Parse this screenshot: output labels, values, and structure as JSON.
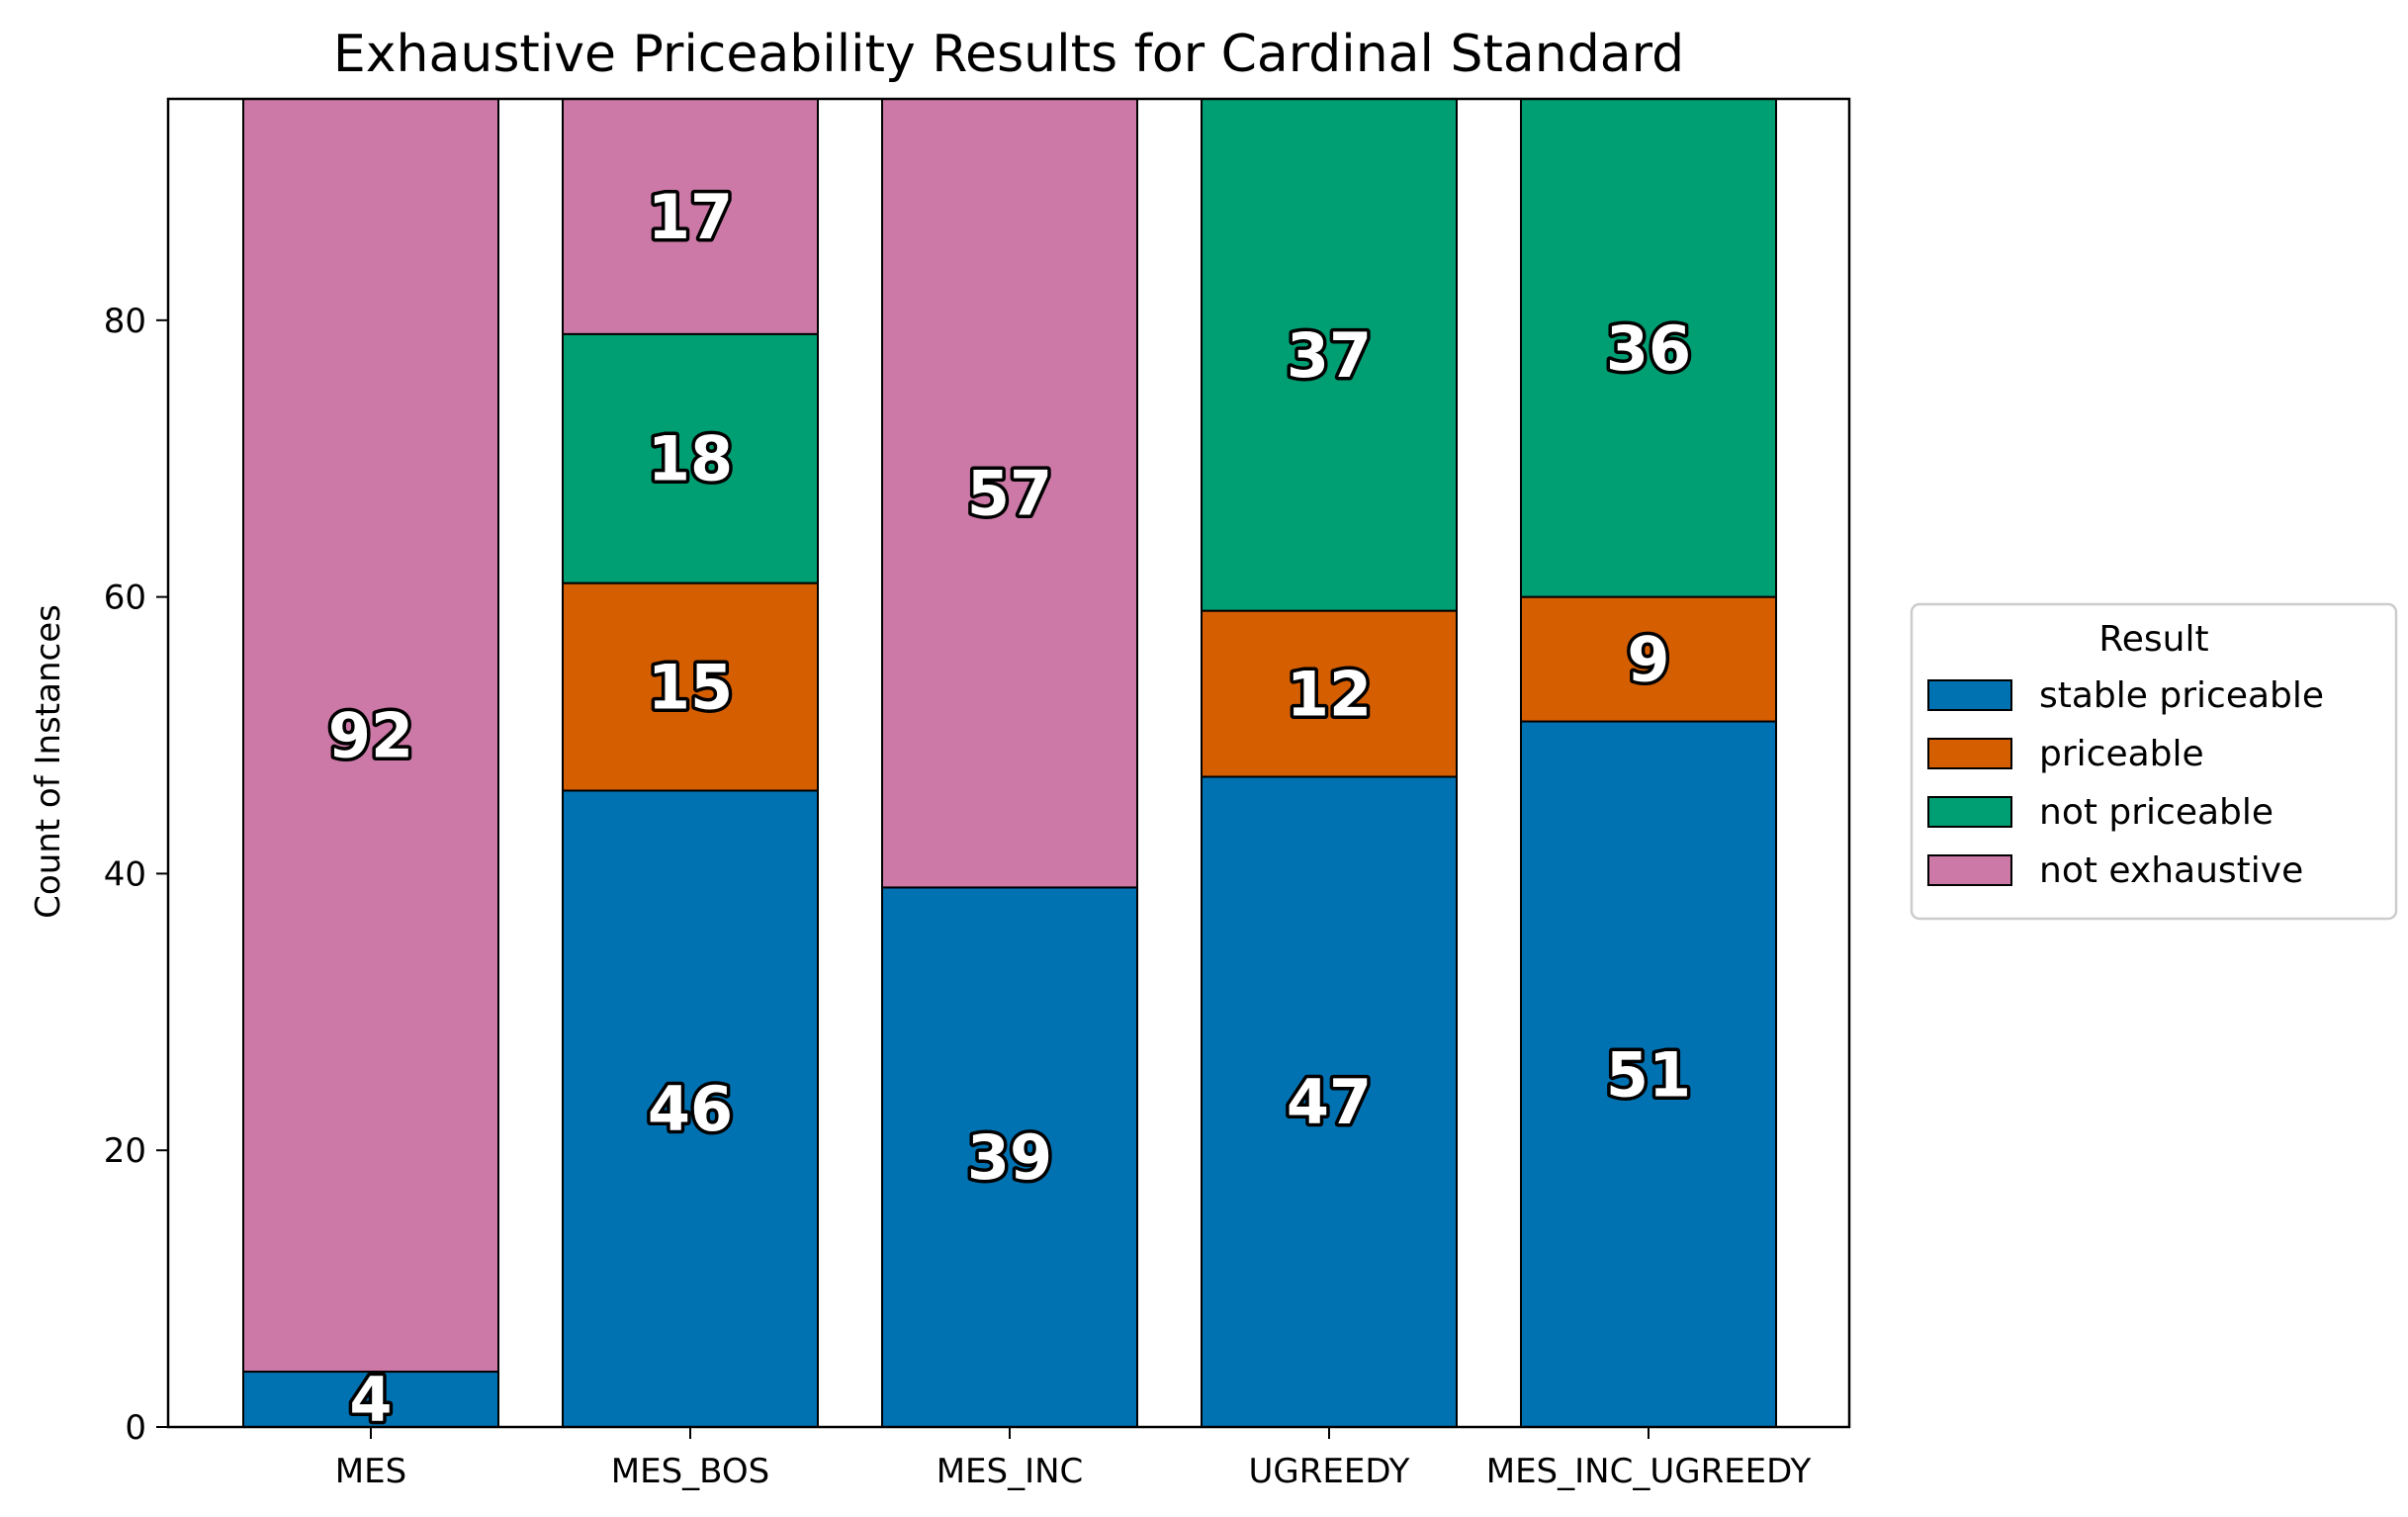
{
  "chart_data": {
    "type": "bar",
    "stacked": true,
    "title": "Exhaustive Priceability Results for Cardinal Standard",
    "xlabel": "",
    "ylabel": "Count of Instances",
    "ylim": [
      0,
      96
    ],
    "yticks": [
      0,
      20,
      40,
      60,
      80
    ],
    "categories": [
      "MES",
      "MES_BOS",
      "MES_INC",
      "UGREEDY",
      "MES_INC_UGREEDY"
    ],
    "series": [
      {
        "name": "stable priceable",
        "color": "#0072b2",
        "values": [
          4,
          46,
          39,
          47,
          51
        ]
      },
      {
        "name": "priceable",
        "color": "#d55e00",
        "values": [
          0,
          15,
          0,
          12,
          9
        ]
      },
      {
        "name": "not priceable",
        "color": "#009e73",
        "values": [
          0,
          18,
          0,
          37,
          36
        ]
      },
      {
        "name": "not exhaustive",
        "color": "#cc79a7",
        "values": [
          92,
          17,
          57,
          0,
          0
        ]
      }
    ],
    "grid": false,
    "legend": {
      "title": "Result",
      "placement": "center-right-outside"
    }
  }
}
